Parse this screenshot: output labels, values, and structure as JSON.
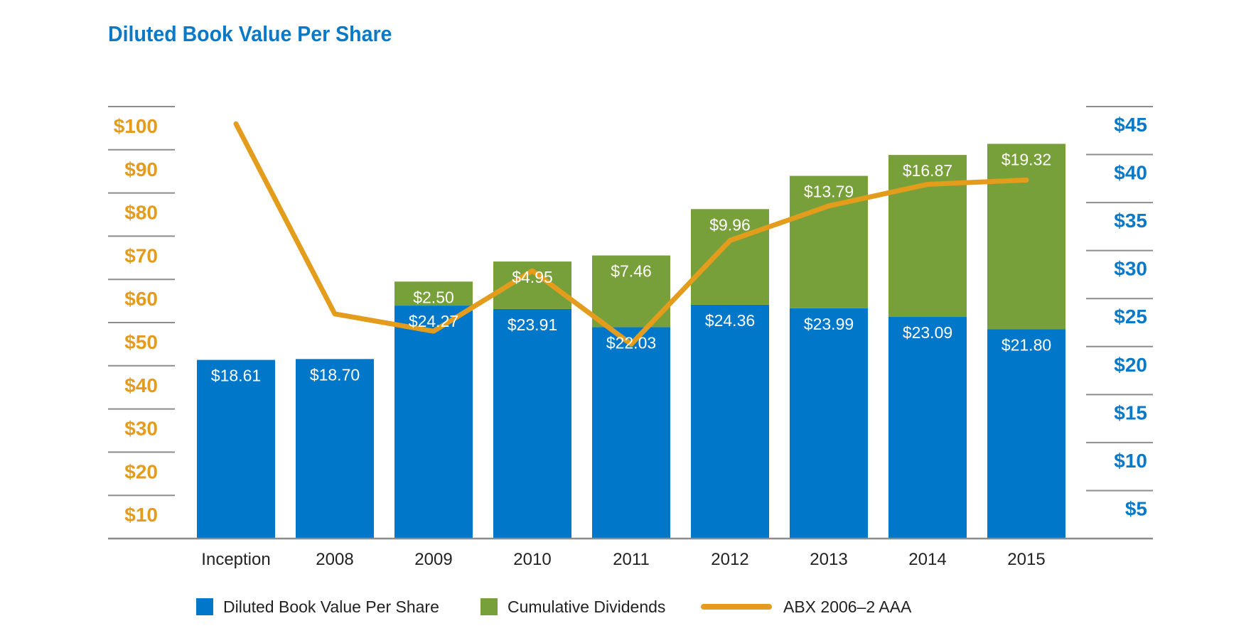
{
  "colors": {
    "title": "#0a79c7",
    "bvps": "#0077c8",
    "dividends": "#78a03a",
    "abx": "#e39c1c",
    "left_axis_labels": "#e39c1c",
    "right_axis_labels": "#0a79c7",
    "gridline": "#8c8c8c",
    "bar_label": "#ffffff"
  },
  "chart_data": {
    "type": "bar",
    "stacked": true,
    "title": "Diluted Book Value Per Share",
    "categories": [
      "Inception",
      "2008",
      "2009",
      "2010",
      "2011",
      "2012",
      "2013",
      "2014",
      "2015"
    ],
    "series": [
      {
        "name": "Diluted Book Value Per Share",
        "axis": "right",
        "values": [
          18.61,
          18.7,
          24.27,
          23.91,
          22.03,
          24.36,
          23.99,
          23.09,
          21.8
        ],
        "labels": [
          "$18.61",
          "$18.70",
          "$24.27",
          "$23.91",
          "$22.03",
          "$24.36",
          "$23.99",
          "$23.09",
          "$21.80"
        ]
      },
      {
        "name": "Cumulative Dividends",
        "axis": "right",
        "values": [
          null,
          null,
          2.5,
          4.95,
          7.46,
          9.96,
          13.79,
          16.87,
          19.32
        ],
        "labels": [
          "",
          "",
          "$2.50",
          "$4.95",
          "$7.46",
          "$9.96",
          "$13.79",
          "$16.87",
          "$19.32"
        ]
      },
      {
        "name": "ABX 2006–2 AAA",
        "type": "line",
        "axis": "left",
        "values": [
          96,
          52,
          48,
          62,
          45,
          69,
          77,
          82,
          83
        ]
      }
    ],
    "left_axis": {
      "ticks": [
        10,
        20,
        30,
        40,
        50,
        60,
        70,
        80,
        90,
        100
      ],
      "tick_labels": [
        "$10",
        "$20",
        "$30",
        "$40",
        "$50",
        "$60",
        "$70",
        "$80",
        "$90",
        "$100"
      ],
      "ylim": [
        0,
        100
      ]
    },
    "right_axis": {
      "ticks": [
        5,
        10,
        15,
        20,
        25,
        30,
        35,
        40,
        45
      ],
      "tick_labels": [
        "$5",
        "$10",
        "$15",
        "$20",
        "$25",
        "$30",
        "$35",
        "$40",
        "$45"
      ],
      "ylim": [
        0,
        45
      ]
    },
    "legend": {
      "position": "bottom",
      "entries": [
        "Diluted Book Value Per Share",
        "Cumulative Dividends",
        "ABX 2006–2 AAA"
      ]
    },
    "grid": false
  }
}
